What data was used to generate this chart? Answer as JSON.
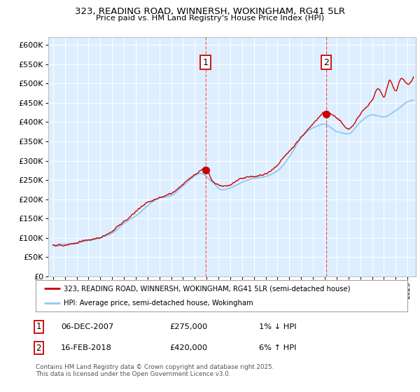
{
  "title1": "323, READING ROAD, WINNERSH, WOKINGHAM, RG41 5LR",
  "title2": "Price paid vs. HM Land Registry's House Price Index (HPI)",
  "ylim": [
    0,
    620000
  ],
  "yticks": [
    0,
    50000,
    100000,
    150000,
    200000,
    250000,
    300000,
    350000,
    400000,
    450000,
    500000,
    550000,
    600000
  ],
  "ytick_labels": [
    "£0",
    "£50K",
    "£100K",
    "£150K",
    "£200K",
    "£250K",
    "£300K",
    "£350K",
    "£400K",
    "£450K",
    "£500K",
    "£550K",
    "£600K"
  ],
  "xlim_start": 1994.6,
  "xlim_end": 2025.7,
  "bg_color": "#ddeeff",
  "grid_color": "#ffffff",
  "hpi_color": "#90c8f0",
  "price_color": "#cc0000",
  "dashed_color": "#dd4444",
  "transaction1_x": 2007.92,
  "transaction1_y": 275000,
  "transaction2_x": 2018.12,
  "transaction2_y": 420000,
  "legend_line1": "323, READING ROAD, WINNERSH, WOKINGHAM, RG41 5LR (semi-detached house)",
  "legend_line2": "HPI: Average price, semi-detached house, Wokingham",
  "transaction1_date": "06-DEC-2007",
  "transaction1_price": "£275,000",
  "transaction1_hpi": "1% ↓ HPI",
  "transaction2_date": "16-FEB-2018",
  "transaction2_price": "£420,000",
  "transaction2_hpi": "6% ↑ HPI",
  "footer": "Contains HM Land Registry data © Crown copyright and database right 2025.\nThis data is licensed under the Open Government Licence v3.0.",
  "marker_box_color": "#cc0000"
}
